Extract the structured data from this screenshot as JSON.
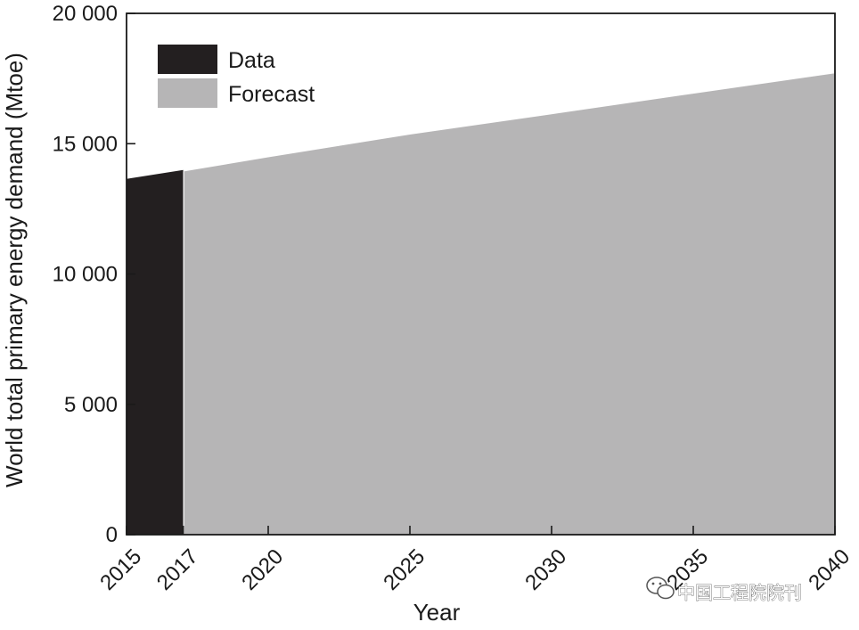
{
  "chart_data": {
    "type": "area",
    "title": "",
    "xlabel": "Year",
    "ylabel": "World total primary energy demand (Mtoe)",
    "xlim": [
      2015,
      2040
    ],
    "ylim": [
      0,
      20000
    ],
    "x_ticks": [
      2015,
      2017,
      2020,
      2025,
      2030,
      2035,
      2040
    ],
    "x_tick_labels": [
      "2015",
      "2017",
      "2020",
      "2025",
      "2030",
      "2035",
      "2040"
    ],
    "y_ticks": [
      0,
      5000,
      10000,
      15000,
      20000
    ],
    "y_tick_labels": [
      "0",
      "5 000",
      "10 000",
      "15 000",
      "20 000"
    ],
    "grid": false,
    "legend_position": "top-left",
    "series": [
      {
        "name": "Data",
        "color": "#231f20",
        "x": [
          2015,
          2017
        ],
        "y": [
          13650,
          13990
        ]
      },
      {
        "name": "Forecast",
        "color": "#b6b5b6",
        "x": [
          2017,
          2020,
          2025,
          2030,
          2035,
          2040
        ],
        "y": [
          13930,
          14480,
          15350,
          16130,
          16920,
          17700
        ]
      }
    ]
  },
  "watermark": {
    "icon": "wechat-icon",
    "text": "中国工程院院刊"
  }
}
